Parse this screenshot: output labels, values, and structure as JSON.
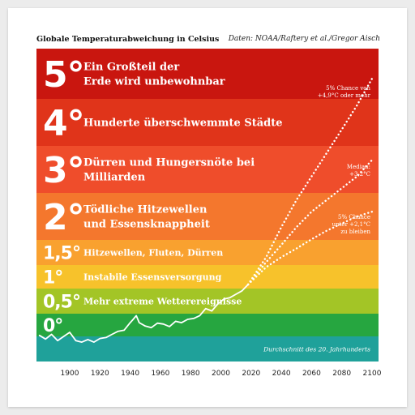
{
  "header": {
    "title": "Globale Temperaturabweichung in Celsius",
    "source": "Daten: NOAA/Raftery et al./Gregor Aisch"
  },
  "colors": {
    "band_5": "#c9160f",
    "band_4": "#e0341a",
    "band_3": "#ef4d2b",
    "band_2": "#f4772d",
    "band_15": "#f9a12f",
    "band_1": "#f7c22b",
    "band_05": "#a3c526",
    "band_0": "#26a640",
    "baseline": "#1fa19a",
    "line": "#ffffff"
  },
  "chart_data": {
    "type": "line",
    "title": "Globale Temperaturabweichung in Celsius",
    "xlabel": "",
    "ylabel": "",
    "xlim": [
      1880,
      2100
    ],
    "x_ticks": [
      "1900",
      "1920",
      "1940",
      "1960",
      "1980",
      "2000",
      "2020",
      "2040",
      "2060",
      "2080",
      "2100"
    ],
    "bands": [
      {
        "level": "5°",
        "label": "Ein Großteil der Erde wird unbewohnbar"
      },
      {
        "level": "4°",
        "label": "Hunderte überschwemmte Städte"
      },
      {
        "level": "3°",
        "label": "Dürren und Hungersnöte bei Milliarden"
      },
      {
        "level": "2°",
        "label": "Tödliche Hitzewellen und Essensknappheit"
      },
      {
        "level": "1,5°",
        "label": "Hitzewellen, Fluten, Dürren"
      },
      {
        "level": "1°",
        "label": "Instabile Essensversorgung"
      },
      {
        "level": "0,5°",
        "label": "Mehr extreme Wetterereignisse"
      },
      {
        "level": "0°",
        "label": ""
      },
      {
        "level": "",
        "label": "Durchschnitt des 20. Jahrhunderts"
      }
    ],
    "series": [
      {
        "style": "solid",
        "x": [
          1880,
          1884,
          1888,
          1892,
          1896,
          1900,
          1904,
          1908,
          1912,
          1916,
          1920,
          1924,
          1928,
          1932,
          1936,
          1940,
          1942,
          1944,
          1946,
          1950,
          1954,
          1958,
          1962,
          1966,
          1970,
          1974,
          1978,
          1982,
          1986,
          1990,
          1994,
          1998,
          2002,
          2006,
          2010,
          2014,
          2018
        ],
        "y": [
          -0.2,
          -0.27,
          -0.18,
          -0.3,
          -0.22,
          -0.14,
          -0.3,
          -0.33,
          -0.28,
          -0.33,
          -0.26,
          -0.24,
          -0.18,
          -0.12,
          -0.1,
          0.05,
          0.12,
          0.2,
          0.05,
          -0.02,
          -0.05,
          0.04,
          0.02,
          -0.03,
          0.08,
          0.05,
          0.12,
          0.14,
          0.2,
          0.35,
          0.3,
          0.45,
          0.55,
          0.58,
          0.65,
          0.72,
          0.85
        ]
      },
      {
        "name": "5% Chance von +4,9°C oder mehr",
        "style": "dotted",
        "x": [
          2018,
          2030,
          2040,
          2050,
          2060,
          2070,
          2080,
          2090,
          2100
        ],
        "y": [
          0.85,
          1.4,
          1.85,
          2.35,
          2.85,
          3.35,
          3.85,
          4.35,
          4.9
        ]
      },
      {
        "name": "Median: +3,2°C",
        "style": "dotted",
        "x": [
          2018,
          2030,
          2040,
          2050,
          2060,
          2070,
          2080,
          2090,
          2100
        ],
        "y": [
          0.85,
          1.3,
          1.6,
          1.85,
          2.1,
          2.35,
          2.6,
          2.85,
          3.2
        ]
      },
      {
        "name": "5% Chance unter +2,1°C zu bleiben",
        "style": "dotted",
        "x": [
          2018,
          2030,
          2040,
          2050,
          2060,
          2070,
          2080,
          2090,
          2100
        ],
        "y": [
          0.85,
          1.2,
          1.4,
          1.55,
          1.68,
          1.8,
          1.9,
          2.0,
          2.1
        ]
      }
    ],
    "annotations": [
      {
        "lines": [
          "5% Chance von",
          "+4,9°C oder mehr"
        ]
      },
      {
        "lines": [
          "Median:",
          "+3,2°C"
        ]
      },
      {
        "lines": [
          "5% Chance",
          "unter +2,1°C",
          "zu bleiben"
        ]
      }
    ]
  }
}
